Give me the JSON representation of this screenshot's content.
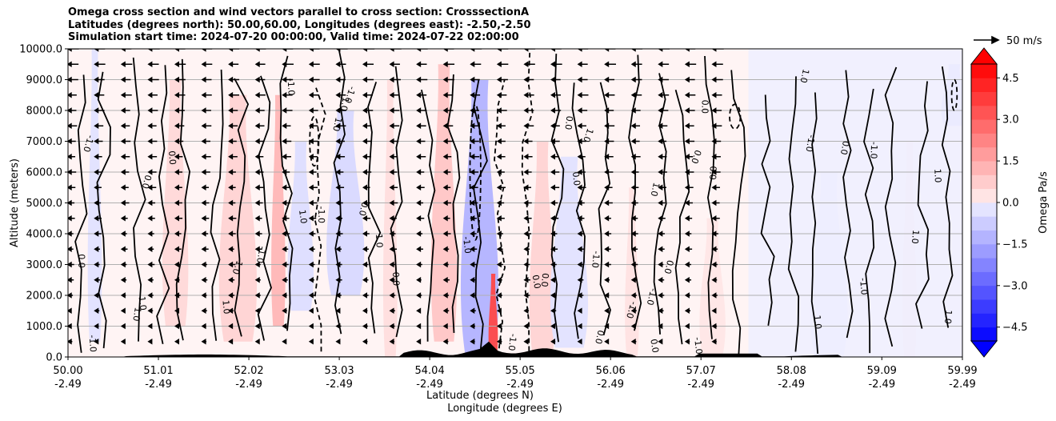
{
  "chart_data": {
    "type": "contour",
    "title_lines": [
      "Omega cross section and wind vectors parallel to cross section: CrosssectionA",
      "Latitudes (degrees north): 50.00,60.00, Longitudes (degrees east): -2.50,-2.50",
      "Simulation start time: 2024-07-20 00:00:00, Valid time: 2024-07-22 02:00:00"
    ],
    "xlabel": "Latitude (degrees N)",
    "xlabel2": "Longitude (degrees E)",
    "ylabel": "Altitude (meters)",
    "x_range": [
      50.0,
      59.99
    ],
    "y_range": [
      0,
      10000
    ],
    "x_ticks": [
      {
        "value": 50.0,
        "lat": "50.00",
        "lon": "-2.49"
      },
      {
        "value": 51.01,
        "lat": "51.01",
        "lon": "-2.49"
      },
      {
        "value": 52.02,
        "lat": "52.02",
        "lon": "-2.49"
      },
      {
        "value": 53.03,
        "lat": "53.03",
        "lon": "-2.49"
      },
      {
        "value": 54.04,
        "lat": "54.04",
        "lon": "-2.49"
      },
      {
        "value": 55.05,
        "lat": "55.05",
        "lon": "-2.49"
      },
      {
        "value": 56.06,
        "lat": "56.06",
        "lon": "-2.49"
      },
      {
        "value": 57.07,
        "lat": "57.07",
        "lon": "-2.49"
      },
      {
        "value": 58.08,
        "lat": "58.08",
        "lon": "-2.49"
      },
      {
        "value": 59.09,
        "lat": "59.09",
        "lon": "-2.49"
      },
      {
        "value": 59.99,
        "lat": "59.99",
        "lon": "-2.49"
      }
    ],
    "y_ticks": [
      {
        "value": 0,
        "label": "0.0"
      },
      {
        "value": 1000,
        "label": "1000.0"
      },
      {
        "value": 2000,
        "label": "2000.0"
      },
      {
        "value": 3000,
        "label": "3000.0"
      },
      {
        "value": 4000,
        "label": "4000.0"
      },
      {
        "value": 5000,
        "label": "5000.0"
      },
      {
        "value": 6000,
        "label": "6000.0"
      },
      {
        "value": 7000,
        "label": "7000.0"
      },
      {
        "value": 8000,
        "label": "8000.0"
      },
      {
        "value": 9000,
        "label": "9000.0"
      },
      {
        "value": 10000,
        "label": "10000.0"
      }
    ],
    "grid": "horizontal",
    "colorbar": {
      "label": "Omega Pa/s",
      "range": [
        -5,
        5
      ],
      "levels": 20,
      "ticks": [
        {
          "value": 4.5,
          "label": "4.5"
        },
        {
          "value": 3.0,
          "label": "3.0"
        },
        {
          "value": 1.5,
          "label": "1.5"
        },
        {
          "value": 0.0,
          "label": "0.0"
        },
        {
          "value": -1.5,
          "label": "−1.5"
        },
        {
          "value": -3.0,
          "label": "−3.0"
        },
        {
          "value": -4.5,
          "label": "−4.5"
        }
      ],
      "extend": "both",
      "neg_color": "#0000ff",
      "pos_color": "#ff0000"
    },
    "quiver_key": {
      "label": "50 m/s",
      "value": 50
    },
    "contour_levels": [
      -1.0,
      0.0,
      1.0
    ],
    "contour_label_values": [
      "0.0",
      "1.0",
      "-1.0"
    ],
    "omega_regions": [
      {
        "x": 50.3,
        "y0": 500,
        "y1": 10000,
        "value": -0.3
      },
      {
        "x": 51.2,
        "y0": 1000,
        "y1": 9000,
        "value": 0.5
      },
      {
        "x": 51.9,
        "y0": 500,
        "y1": 8500,
        "value": 0.6
      },
      {
        "x": 52.35,
        "y0": 1000,
        "y1": 8500,
        "value": 1.2
      },
      {
        "x": 52.6,
        "y0": 1500,
        "y1": 7000,
        "value": -0.4
      },
      {
        "x": 53.1,
        "y0": 2000,
        "y1": 8000,
        "value": -0.5
      },
      {
        "x": 53.6,
        "y0": 0,
        "y1": 9000,
        "value": 0.4
      },
      {
        "x": 54.2,
        "y0": 500,
        "y1": 9500,
        "value": 0.9
      },
      {
        "x": 54.6,
        "y0": 0,
        "y1": 9000,
        "value": -1.3
      },
      {
        "x": 54.75,
        "y0": 0,
        "y1": 2700,
        "value": 3.5
      },
      {
        "x": 55.3,
        "y0": 0,
        "y1": 7000,
        "value": 0.6
      },
      {
        "x": 55.6,
        "y0": 300,
        "y1": 6500,
        "value": -0.3
      },
      {
        "x": 56.3,
        "y0": 0,
        "y1": 5500,
        "value": 0.3
      },
      {
        "x": 57.2,
        "y0": 0,
        "y1": 4500,
        "value": 0.2
      },
      {
        "x": 58.5,
        "y0": 0,
        "y1": 6000,
        "value": -0.15
      },
      {
        "x": 59.4,
        "y0": 0,
        "y1": 7000,
        "value": 0.15
      },
      {
        "x": 59.9,
        "y0": 7500,
        "y1": 9500,
        "value": -0.6
      }
    ],
    "wind_vector_columns": [
      50.0,
      50.3,
      50.6,
      50.9,
      51.2,
      51.5,
      51.8,
      52.1,
      52.4,
      52.7,
      53.0,
      53.3,
      53.6,
      53.9,
      54.2,
      54.5,
      54.8,
      55.1,
      55.4,
      55.7,
      56.0,
      56.3,
      56.6,
      56.9,
      57.2
    ],
    "terrain_peak_lat": 54.7
  }
}
